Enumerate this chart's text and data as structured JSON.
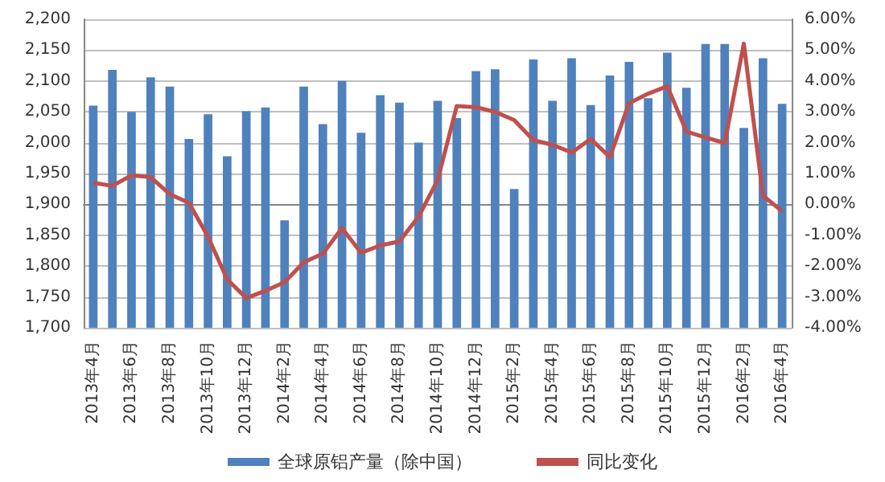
{
  "chart_data": {
    "type": "bar",
    "categories": [
      "2013年4月",
      null,
      "2013年6月",
      null,
      "2013年8月",
      null,
      "2013年10月",
      null,
      "2013年12月",
      null,
      "2014年2月",
      null,
      "2014年4月",
      null,
      "2014年6月",
      null,
      "2014年8月",
      null,
      "2014年10月",
      null,
      "2014年12月",
      null,
      "2015年2月",
      null,
      "2015年4月",
      null,
      "2015年6月",
      null,
      "2015年8月",
      null,
      "2015年10月",
      null,
      "2015年12月",
      null,
      "2016年2月",
      null,
      "2016年4月"
    ],
    "series": [
      {
        "name": "全球原铝产量（除中国）",
        "color": "#4f81bd",
        "values": [
          2060,
          2118,
          2050,
          2106,
          2091,
          2006,
          2046,
          1978,
          2051,
          2057,
          1874,
          2091,
          2030,
          2100,
          2016,
          2077,
          2065,
          2000,
          2068,
          2040,
          2116,
          2119,
          1925,
          2135,
          2068,
          2137,
          2061,
          2109,
          2131,
          2072,
          2146,
          2089,
          2160,
          2160,
          2024,
          2137,
          2063
        ]
      },
      {
        "name": "同比变化",
        "type": "line",
        "axis": "y2",
        "color": "#c0504d",
        "values": [
          0.7,
          0.6,
          0.94,
          0.88,
          0.33,
          0.05,
          -1.05,
          -2.43,
          -3.04,
          -2.8,
          -2.52,
          -1.88,
          -1.6,
          -0.77,
          -1.57,
          -1.33,
          -1.2,
          -0.4,
          0.79,
          3.19,
          3.15,
          3.0,
          2.73,
          2.08,
          1.93,
          1.68,
          2.12,
          1.53,
          3.28,
          3.59,
          3.83,
          2.36,
          2.17,
          1.99,
          5.21,
          0.28,
          -0.22
        ]
      }
    ],
    "ylim": [
      1700,
      2200
    ],
    "yticks": [
      {
        "value": 1700,
        "label": "1,700"
      },
      {
        "value": 1750,
        "label": "1,750"
      },
      {
        "value": 1800,
        "label": "1,800"
      },
      {
        "value": 1850,
        "label": "1,850"
      },
      {
        "value": 1900,
        "label": "1,900"
      },
      {
        "value": 1950,
        "label": "1,950"
      },
      {
        "value": 2000,
        "label": "2,000"
      },
      {
        "value": 2050,
        "label": "2,050"
      },
      {
        "value": 2100,
        "label": "2,100"
      },
      {
        "value": 2150,
        "label": "2,150"
      },
      {
        "value": 2200,
        "label": "2,200"
      }
    ],
    "y2lim": [
      -4,
      6
    ],
    "y2ticks": [
      {
        "value": -4,
        "label": "-4.00%"
      },
      {
        "value": -3,
        "label": "-3.00%"
      },
      {
        "value": -2,
        "label": "-2.00%"
      },
      {
        "value": -1,
        "label": "-1.00%"
      },
      {
        "value": 0,
        "label": "0.00%"
      },
      {
        "value": 1,
        "label": "1.00%"
      },
      {
        "value": 2,
        "label": "2.00%"
      },
      {
        "value": 3,
        "label": "3.00%"
      },
      {
        "value": 4,
        "label": "4.00%"
      },
      {
        "value": 5,
        "label": "5.00%"
      },
      {
        "value": 6,
        "label": "6.00%"
      }
    ],
    "grid": "y",
    "legend": "bottom",
    "marker": "none",
    "line_style": "solid"
  }
}
